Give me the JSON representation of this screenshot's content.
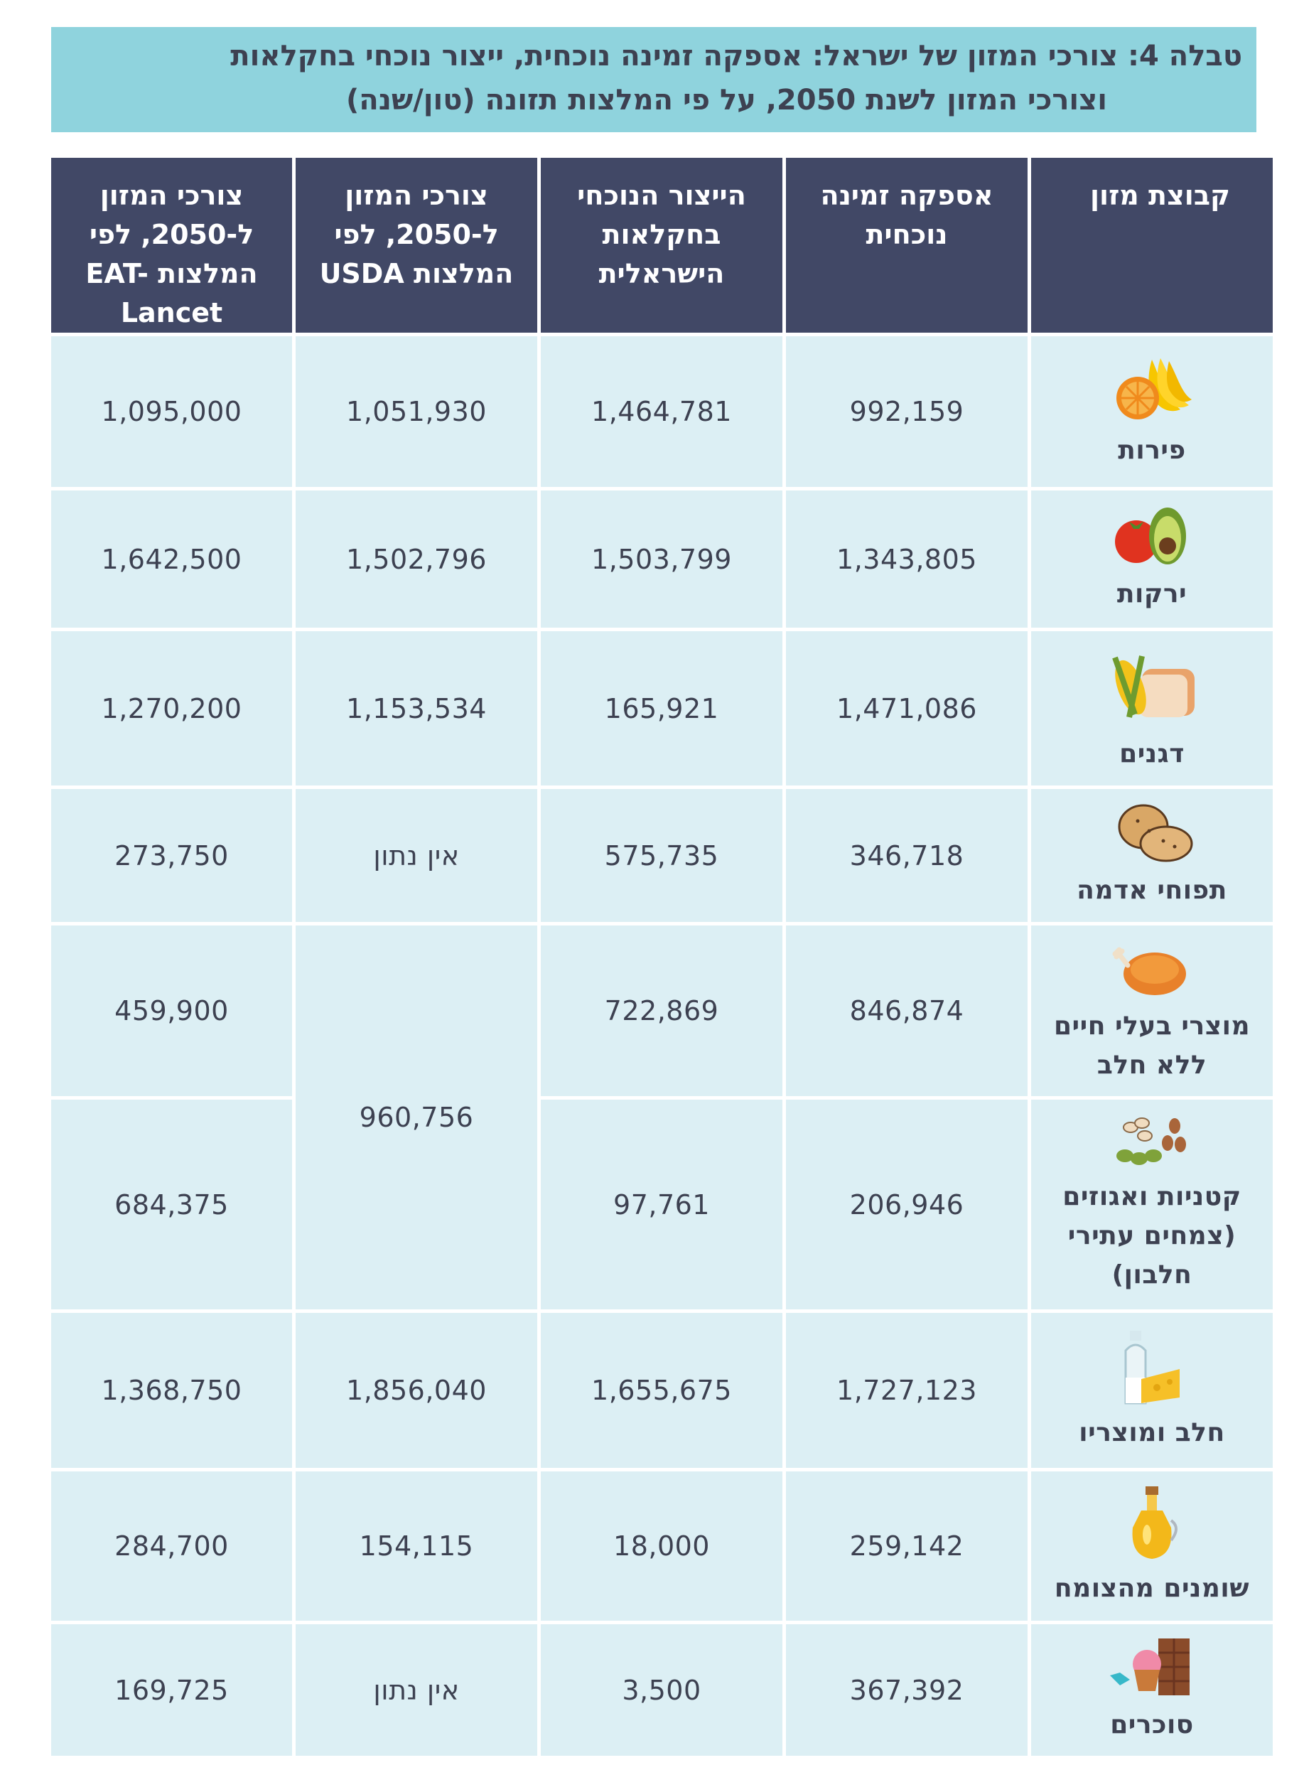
{
  "title": {
    "line1": "טבלה 4: צורכי המזון של ישראל: אספקה זמינה נוכחית, ייצור נוכחי בחקלאות",
    "line2": "וצורכי המזון לשנת 2050, על פי המלצות תזונה (טון/שנה)"
  },
  "headers": {
    "food_group": "קבוצת מזון",
    "supply": "אספקה זמינה נוכחית",
    "production": "הייצור הנוכחי בחקלאות הישראלית",
    "usda": "צורכי המזון ל-2050, לפי המלצות USDA",
    "eat": "צורכי המזון ל-2050, לפי המלצות EAT-Lancet"
  },
  "rows": [
    {
      "name": "פירות",
      "icon": "fruit-icon",
      "supply": "992,159",
      "production": "1,464,781",
      "usda": "1,051,930",
      "eat": "1,095,000"
    },
    {
      "name": "ירקות",
      "icon": "vegetables-icon",
      "supply": "1,343,805",
      "production": "1,503,799",
      "usda": "1,502,796",
      "eat": "1,642,500"
    },
    {
      "name": "דגנים",
      "icon": "grains-icon",
      "supply": "1,471,086",
      "production": "165,921",
      "usda": "1,153,534",
      "eat": "1,270,200"
    },
    {
      "name": "תפוחי אדמה",
      "icon": "potatoes-icon",
      "supply": "346,718",
      "production": "575,735",
      "usda": "אין נתון",
      "eat": "273,750"
    },
    {
      "name": "מוצרי בעלי חיים ללא חלב",
      "icon": "chicken-icon",
      "supply": "846,874",
      "production": "722,869",
      "usda": "960,756",
      "eat": "459,900"
    },
    {
      "name": "קטניות ואגוזים (צמחים עתירי חלבון)",
      "icon": "legumes-nuts-icon",
      "supply": "206,946",
      "production": "97,761",
      "eat": "684,375"
    },
    {
      "name": "חלב ומוצריו",
      "icon": "milk-cheese-icon",
      "supply": "1,727,123",
      "production": "1,655,675",
      "usda": "1,856,040",
      "eat": "1,368,750"
    },
    {
      "name": "שומנים מהצומח",
      "icon": "oil-bottle-icon",
      "supply": "259,142",
      "production": "18,000",
      "usda": "154,115",
      "eat": "284,700"
    },
    {
      "name": "סוכרים",
      "icon": "sweets-icon",
      "supply": "367,392",
      "production": "3,500",
      "usda": "אין נתון",
      "eat": "169,725"
    }
  ]
}
